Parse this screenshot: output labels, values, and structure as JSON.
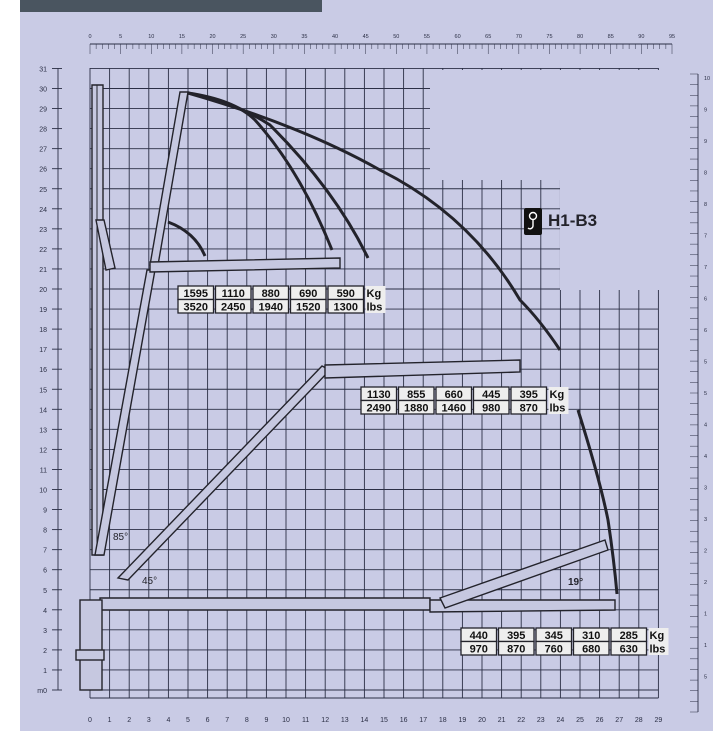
{
  "title": "H1-B3",
  "colors": {
    "background": "#c9cbe5",
    "ink": "#23232b",
    "header": "#4a5560",
    "box": "#eeeeee"
  },
  "icons": {
    "model_badge": "crane-hook-icon"
  },
  "axes": {
    "top_ruler_labels": [
      "0",
      "5",
      "10",
      "15",
      "20",
      "25",
      "30",
      "35",
      "40",
      "45",
      "50",
      "55",
      "60",
      "65",
      "70",
      "75",
      "80",
      "85",
      "90",
      "95"
    ],
    "bottom_labels": [
      "0",
      "1",
      "2",
      "3",
      "4",
      "5",
      "6",
      "7",
      "8",
      "9",
      "10",
      "11",
      "12",
      "13",
      "14",
      "15",
      "16",
      "17",
      "18",
      "19",
      "20",
      "21",
      "22",
      "23",
      "24",
      "25",
      "26",
      "27",
      "28",
      "29"
    ],
    "left_labels": [
      "m0",
      "1",
      "2",
      "3",
      "4",
      "5",
      "6",
      "7",
      "8",
      "9",
      "10",
      "11",
      "12",
      "13",
      "14",
      "15",
      "16",
      "17",
      "18",
      "19",
      "20",
      "21",
      "22",
      "23",
      "24",
      "25",
      "26",
      "27",
      "28",
      "29",
      "30",
      "31"
    ],
    "right_labels": [
      "10",
      "9",
      "9",
      "8",
      "8",
      "7",
      "7",
      "6",
      "6",
      "5",
      "5",
      "4",
      "4",
      "3",
      "3",
      "2",
      "2",
      "1",
      "1",
      "5"
    ]
  },
  "angles": {
    "a85": "85°",
    "a45": "45°",
    "a19": "19°"
  },
  "load_tables": [
    {
      "kg": [
        "1595",
        "1110",
        "880",
        "690",
        "590"
      ],
      "lbs": [
        "3520",
        "2450",
        "1940",
        "1520",
        "1300"
      ],
      "unit_kg": "Kg",
      "unit_lbs": "lbs"
    },
    {
      "kg": [
        "1130",
        "855",
        "660",
        "445",
        "395"
      ],
      "lbs": [
        "2490",
        "1880",
        "1460",
        "980",
        "870"
      ],
      "unit_kg": "Kg",
      "unit_lbs": "lbs"
    },
    {
      "kg": [
        "440",
        "395",
        "345",
        "310",
        "285"
      ],
      "lbs": [
        "970",
        "870",
        "760",
        "680",
        "630"
      ],
      "unit_kg": "Kg",
      "unit_lbs": "lbs"
    }
  ]
}
